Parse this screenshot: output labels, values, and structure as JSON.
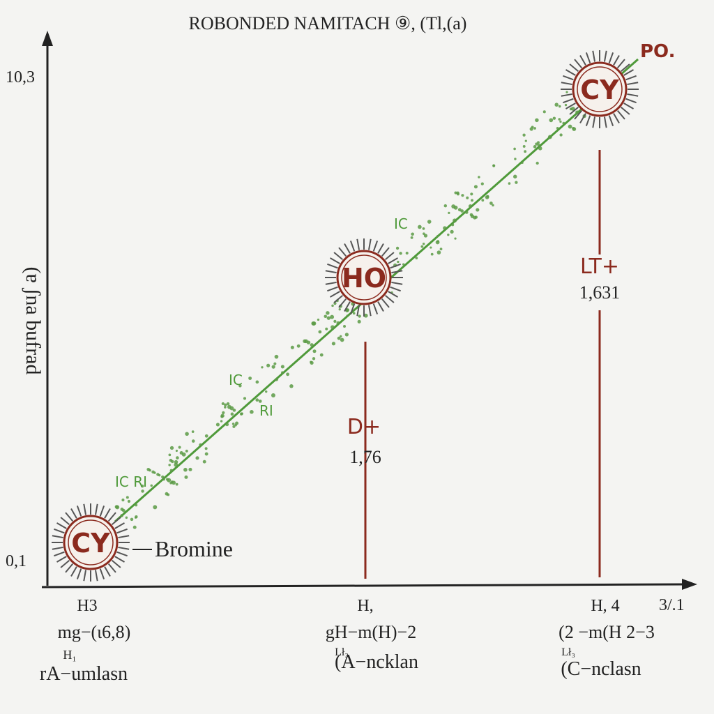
{
  "title": "ROBONDED NAMITACH ⑨, (Tl,(a)",
  "y_axis": {
    "top": "10,3",
    "bottom": "0,1",
    "label": "(ɐ ʃna bufrad"
  },
  "x_axis_end": "3/.1",
  "nodes": [
    {
      "label": "CY"
    },
    {
      "label": "HO"
    },
    {
      "label": "CY"
    }
  ],
  "end_label": "PO.",
  "bromine": "Bromine",
  "line_labels": [
    "IC RI",
    "IC",
    "RI",
    "IC"
  ],
  "markers": [
    {
      "label": "D+",
      "value": "1,76"
    },
    {
      "label": "LT+",
      "value": "1,631"
    }
  ],
  "columns": [
    {
      "lines": [
        "H3",
        "mg−(ɩ6,8)",
        "H₁",
        "rA−umlasn"
      ]
    },
    {
      "lines": [
        "H,",
        "gH−m(H)−2",
        "Lł₃",
        "(A−ncklan"
      ]
    },
    {
      "lines": [
        "H, 4",
        "(2 −m(H 2−3",
        "Lł₃",
        "(C−nclasn"
      ]
    }
  ]
}
